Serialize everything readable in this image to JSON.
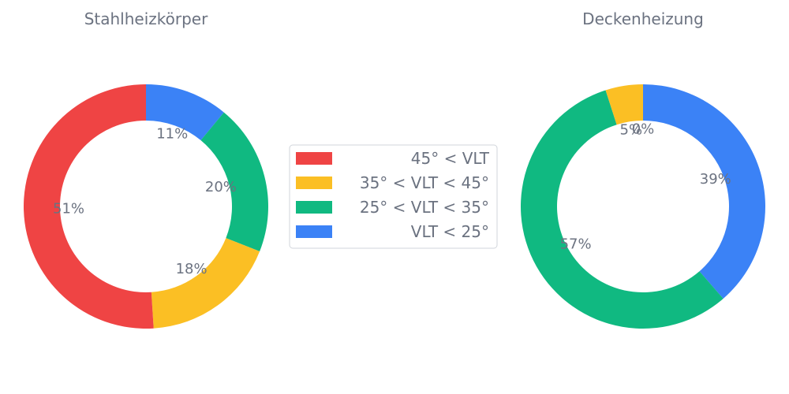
{
  "chart_data": {
    "type": "pie",
    "variant": "donut",
    "legend": {
      "placement": "center",
      "entries": [
        {
          "label": "45° < VLT",
          "color": "#ef4444"
        },
        {
          "label": "35° < VLT < 45°",
          "color": "#fbbf24"
        },
        {
          "label": "25° < VLT < 35°",
          "color": "#10b981"
        },
        {
          "label": "VLT < 25°",
          "color": "#3b82f6"
        }
      ]
    },
    "charts": [
      {
        "title": "Stahlheizkörper",
        "slices": [
          {
            "label": "VLT < 25°",
            "value": 11,
            "text": "11%",
            "color": "#3b82f6"
          },
          {
            "label": "25° < VLT < 35°",
            "value": 20,
            "text": "20%",
            "color": "#10b981"
          },
          {
            "label": "35° < VLT < 45°",
            "value": 18,
            "text": "18%",
            "color": "#fbbf24"
          },
          {
            "label": "45° < VLT",
            "value": 51,
            "text": "51%",
            "color": "#ef4444"
          }
        ]
      },
      {
        "title": "Deckenheizung",
        "slices": [
          {
            "label": "VLT < 25°",
            "value": 39,
            "text": "39%",
            "color": "#3b82f6"
          },
          {
            "label": "25° < VLT < 35°",
            "value": 57,
            "text": "57%",
            "color": "#10b981"
          },
          {
            "label": "35° < VLT < 45°",
            "value": 5,
            "text": "5%",
            "color": "#fbbf24"
          },
          {
            "label": "45° < VLT",
            "value": 0,
            "text": "0%",
            "color": "#ef4444"
          }
        ]
      }
    ]
  }
}
